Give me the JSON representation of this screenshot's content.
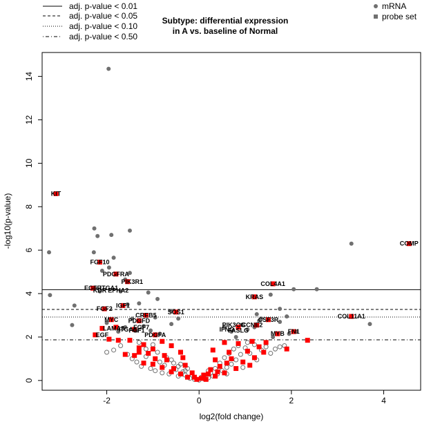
{
  "chart_data": {
    "type": "scatter",
    "title": [
      "Subtype: differential expression",
      "in A vs. baseline of Normal"
    ],
    "xlabel": "log2(fold change)",
    "ylabel": "-log10(p-value)",
    "xlim": [
      -3.4,
      4.8
    ],
    "ylim": [
      -0.45,
      15.1
    ],
    "xticks": [
      -2,
      0,
      2,
      4
    ],
    "yticks": [
      0,
      2,
      4,
      6,
      8,
      10,
      12,
      14
    ],
    "grid": false,
    "legend_lines": [
      {
        "label": "adj. p-value < 0.01",
        "style": "solid",
        "y": 4.18
      },
      {
        "label": "adj. p-value < 0.05",
        "style": "dashed",
        "y": 3.27
      },
      {
        "label": "adj. p-value < 0.10",
        "style": "dotted",
        "y": 2.92
      },
      {
        "label": "adj. p-value < 0.50",
        "style": "dotdash",
        "y": 1.87
      }
    ],
    "legend_points": [
      {
        "label": "mRNA",
        "shape": "circle",
        "color": "#707070"
      },
      {
        "label": "probe set",
        "shape": "square",
        "color": "#707070"
      }
    ],
    "colors": {
      "mrna": "#707070",
      "probe": "#ff0000",
      "open_ring": "#707070"
    },
    "mrna_points": [
      [
        -1.96,
        14.35
      ],
      [
        -3.25,
        5.9
      ],
      [
        -3.23,
        3.93
      ],
      [
        -2.7,
        3.45
      ],
      [
        -2.75,
        2.55
      ],
      [
        -2.27,
        7.0
      ],
      [
        -2.2,
        6.65
      ],
      [
        -1.9,
        6.7
      ],
      [
        -1.5,
        6.9
      ],
      [
        -2.28,
        5.9
      ],
      [
        -1.85,
        5.65
      ],
      [
        -1.6,
        4.65
      ],
      [
        -1.7,
        4.1
      ],
      [
        -1.1,
        4.05
      ],
      [
        -0.9,
        3.75
      ],
      [
        -0.95,
        2.9
      ],
      [
        -0.85,
        2.15
      ],
      [
        -2.1,
        5.05
      ],
      [
        -1.95,
        5.2
      ],
      [
        -1.5,
        4.95
      ],
      [
        -2.25,
        4.25
      ],
      [
        -2.15,
        4.1
      ],
      [
        -1.3,
        3.55
      ],
      [
        -1.55,
        3.5
      ],
      [
        -2.0,
        2.65
      ],
      [
        -1.45,
        2.85
      ],
      [
        -1.2,
        2.5
      ],
      [
        -1.05,
        2.3
      ],
      [
        -1.35,
        2.3
      ],
      [
        -1.6,
        2.45
      ],
      [
        -1.75,
        2.25
      ],
      [
        -0.6,
        2.6
      ],
      [
        -0.45,
        2.85
      ],
      [
        -0.6,
        3.2
      ],
      [
        3.3,
        6.3
      ],
      [
        2.05,
        4.2
      ],
      [
        2.55,
        4.2
      ],
      [
        1.55,
        3.95
      ],
      [
        1.25,
        3.05
      ],
      [
        1.35,
        2.85
      ],
      [
        1.75,
        3.3
      ],
      [
        1.9,
        2.95
      ],
      [
        1.6,
        2.0
      ],
      [
        1.95,
        2.15
      ],
      [
        2.1,
        2.25
      ],
      [
        1.75,
        2.7
      ],
      [
        3.7,
        2.6
      ],
      [
        0.9,
        2.55
      ],
      [
        1.05,
        2.35
      ],
      [
        1.2,
        2.45
      ],
      [
        0.7,
        2.25
      ],
      [
        0.55,
        2.45
      ],
      [
        0.8,
        2.0
      ],
      [
        1.3,
        2.75
      ]
    ],
    "probe_points": [
      [
        -3.1,
        8.6
      ],
      [
        4.55,
        6.3
      ],
      [
        -2.15,
        5.45
      ],
      [
        -1.8,
        4.9
      ],
      [
        -1.55,
        4.55
      ],
      [
        -2.3,
        4.25
      ],
      [
        1.6,
        4.45
      ],
      [
        1.2,
        3.85
      ],
      [
        -1.65,
        3.45
      ],
      [
        -2.05,
        3.3
      ],
      [
        -1.15,
        3.0
      ],
      [
        -0.5,
        3.15
      ],
      [
        -1.9,
        2.8
      ],
      [
        -1.3,
        2.75
      ],
      [
        1.5,
        2.8
      ],
      [
        1.25,
        2.55
      ],
      [
        3.3,
        2.95
      ],
      [
        -2.1,
        2.4
      ],
      [
        -1.8,
        2.45
      ],
      [
        -1.4,
        2.35
      ],
      [
        0.85,
        2.45
      ],
      [
        2.05,
        2.25
      ],
      [
        1.7,
        2.15
      ],
      [
        -2.25,
        2.1
      ],
      [
        -0.95,
        2.1
      ],
      [
        -1.95,
        1.9
      ],
      [
        -1.5,
        1.85
      ],
      [
        2.35,
        1.85
      ],
      [
        -1.2,
        1.65
      ],
      [
        -0.8,
        1.8
      ],
      [
        1.15,
        1.8
      ],
      [
        1.45,
        1.75
      ],
      [
        0.85,
        1.7
      ],
      [
        0.55,
        1.75
      ],
      [
        1.9,
        1.45
      ],
      [
        -1.3,
        1.5
      ],
      [
        -1.0,
        1.45
      ],
      [
        -0.6,
        1.6
      ],
      [
        -1.3,
        1.3
      ],
      [
        -0.4,
        1.3
      ],
      [
        0.3,
        1.4
      ],
      [
        0.65,
        1.3
      ],
      [
        1.05,
        1.35
      ],
      [
        1.4,
        1.3
      ],
      [
        1.2,
        1.05
      ],
      [
        -1.4,
        1.15
      ],
      [
        -0.95,
        1.0
      ],
      [
        -0.7,
        0.95
      ],
      [
        -0.35,
        1.05
      ],
      [
        0.35,
        0.95
      ],
      [
        0.7,
        1.0
      ],
      [
        0.95,
        0.85
      ],
      [
        1.1,
        0.7
      ],
      [
        -1.2,
        0.8
      ],
      [
        -0.8,
        0.6
      ],
      [
        -0.55,
        0.55
      ],
      [
        -0.3,
        0.7
      ],
      [
        -0.15,
        0.35
      ],
      [
        0.1,
        0.25
      ],
      [
        0.25,
        0.5
      ],
      [
        0.45,
        0.65
      ],
      [
        0.55,
        0.35
      ],
      [
        0.8,
        0.55
      ],
      [
        -1.0,
        0.75
      ],
      [
        -0.6,
        0.4
      ],
      [
        -0.4,
        0.3
      ],
      [
        -0.25,
        0.15
      ],
      [
        0.05,
        0.1
      ],
      [
        0.15,
        0.05
      ],
      [
        0.35,
        0.2
      ],
      [
        -0.05,
        0.05
      ],
      [
        -0.1,
        0.15
      ],
      [
        0.2,
        0.3
      ],
      [
        0.4,
        0.4
      ],
      [
        0.6,
        0.8
      ],
      [
        -0.75,
        1.15
      ],
      [
        -1.1,
        1.25
      ],
      [
        1.3,
        1.55
      ],
      [
        -1.6,
        1.2
      ],
      [
        -1.75,
        1.85
      ]
    ],
    "open_points": [
      [
        -1.55,
        1.2
      ],
      [
        -1.45,
        1.0
      ],
      [
        -1.35,
        0.85
      ],
      [
        -1.25,
        0.65
      ],
      [
        -1.15,
        1.1
      ],
      [
        -1.05,
        0.55
      ],
      [
        -0.95,
        0.45
      ],
      [
        -0.85,
        0.85
      ],
      [
        -0.8,
        0.35
      ],
      [
        -0.75,
        0.7
      ],
      [
        -0.65,
        0.3
      ],
      [
        -0.6,
        0.95
      ],
      [
        -0.5,
        0.5
      ],
      [
        -0.45,
        0.2
      ],
      [
        -0.4,
        0.75
      ],
      [
        -0.35,
        0.4
      ],
      [
        -0.3,
        0.25
      ],
      [
        -0.25,
        0.55
      ],
      [
        -0.2,
        0.1
      ],
      [
        -0.15,
        0.25
      ],
      [
        -0.1,
        0.05
      ],
      [
        0.0,
        0.02
      ],
      [
        0.05,
        0.15
      ],
      [
        0.1,
        0.08
      ],
      [
        0.15,
        0.2
      ],
      [
        0.2,
        0.12
      ],
      [
        0.25,
        0.35
      ],
      [
        0.3,
        0.2
      ],
      [
        0.35,
        0.55
      ],
      [
        0.4,
        0.3
      ],
      [
        0.45,
        0.8
      ],
      [
        0.5,
        0.45
      ],
      [
        0.55,
        1.05
      ],
      [
        0.6,
        0.6
      ],
      [
        0.65,
        1.25
      ],
      [
        0.7,
        0.75
      ],
      [
        0.75,
        1.45
      ],
      [
        0.8,
        0.95
      ],
      [
        0.9,
        1.2
      ],
      [
        1.0,
        1.5
      ],
      [
        1.1,
        1.25
      ],
      [
        1.2,
        1.65
      ],
      [
        1.35,
        1.4
      ],
      [
        1.45,
        1.55
      ],
      [
        1.55,
        1.25
      ],
      [
        1.65,
        1.45
      ],
      [
        1.75,
        1.55
      ],
      [
        1.85,
        1.6
      ],
      [
        -1.7,
        1.6
      ],
      [
        -1.85,
        1.4
      ],
      [
        -2.0,
        1.3
      ],
      [
        -1.15,
        1.45
      ],
      [
        -0.9,
        1.3
      ],
      [
        -0.7,
        1.05
      ],
      [
        -0.55,
        0.8
      ],
      [
        0.85,
        1.6
      ],
      [
        1.05,
        1.75
      ],
      [
        -1.3,
        1.75
      ],
      [
        -1.0,
        1.65
      ],
      [
        0.95,
        0.6
      ],
      [
        -0.45,
        0.65
      ],
      [
        0.2,
        0.45
      ],
      [
        -0.3,
        0.45
      ],
      [
        0.6,
        0.3
      ],
      [
        1.25,
        0.95
      ]
    ],
    "gene_labels": [
      {
        "text": "KIT",
        "x": -3.1,
        "y": 8.6
      },
      {
        "text": "COMP",
        "x": 4.55,
        "y": 6.3
      },
      {
        "text": "FGF10",
        "x": -2.15,
        "y": 5.45
      },
      {
        "text": "PDGFRA",
        "x": -1.8,
        "y": 4.9
      },
      {
        "text": "PIK3R1",
        "x": -1.45,
        "y": 4.55
      },
      {
        "text": "EGFR",
        "x": -2.3,
        "y": 4.25
      },
      {
        "text": "ITGA1",
        "x": -1.95,
        "y": 4.25
      },
      {
        "text": "KDR",
        "x": -2.15,
        "y": 4.15
      },
      {
        "text": "EPHA2",
        "x": -1.75,
        "y": 4.15
      },
      {
        "text": "COL4A1",
        "x": 1.6,
        "y": 4.45
      },
      {
        "text": "KRAS",
        "x": 1.2,
        "y": 3.85
      },
      {
        "text": "IGF1",
        "x": -1.65,
        "y": 3.45
      },
      {
        "text": "FGF2",
        "x": -2.05,
        "y": 3.3
      },
      {
        "text": "CREB5",
        "x": -1.15,
        "y": 3.0
      },
      {
        "text": "SOS1",
        "x": -0.5,
        "y": 3.15
      },
      {
        "text": "COL11A1",
        "x": 3.3,
        "y": 2.95
      },
      {
        "text": "MYC",
        "x": -1.9,
        "y": 2.8
      },
      {
        "text": "PDGFD",
        "x": -1.3,
        "y": 2.75
      },
      {
        "text": "CSF3R",
        "x": 1.5,
        "y": 2.8
      },
      {
        "text": "LAMA3",
        "x": -1.85,
        "y": 2.4
      },
      {
        "text": "ITGA6",
        "x": -1.55,
        "y": 2.35
      },
      {
        "text": "FGF7",
        "x": -1.25,
        "y": 2.45
      },
      {
        "text": "FGF1",
        "x": -1.35,
        "y": 2.3
      },
      {
        "text": "PIK3CG",
        "x": 0.75,
        "y": 2.55
      },
      {
        "text": "CCNE2",
        "x": 1.15,
        "y": 2.55
      },
      {
        "text": "IFNG",
        "x": 0.6,
        "y": 2.35
      },
      {
        "text": "FASLG",
        "x": 0.85,
        "y": 2.3
      },
      {
        "text": "EGF",
        "x": -2.1,
        "y": 2.1
      },
      {
        "text": "PDGFA",
        "x": -0.95,
        "y": 2.1
      },
      {
        "text": "MYB",
        "x": 1.7,
        "y": 2.15
      },
      {
        "text": "FN1",
        "x": 2.05,
        "y": 2.25
      }
    ]
  }
}
